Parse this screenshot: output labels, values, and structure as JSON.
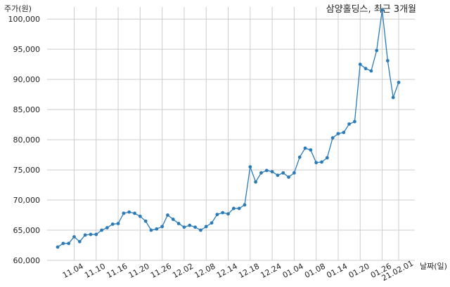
{
  "chart_data": {
    "type": "line",
    "title": "삼양홀딩스, 최근 3개월",
    "ylabel": "주가(원)",
    "xlabel": "날짜(일)",
    "ylim": [
      60000,
      102000
    ],
    "yticks": [
      "60,000",
      "65,000",
      "70,000",
      "75,000",
      "80,000",
      "85,000",
      "90,000",
      "95,000",
      "100,000"
    ],
    "xticks": [
      "11.04",
      "11.10",
      "11.16",
      "11.20",
      "11.26",
      "12.02",
      "12.08",
      "12.14",
      "12.18",
      "12.24",
      "01.04",
      "01.08",
      "01.14",
      "01.20",
      "01.26",
      "21.02.01"
    ],
    "grid": true,
    "line_color": "#2b7bb9",
    "values": [
      62200,
      62800,
      62800,
      63900,
      63100,
      64200,
      64300,
      64300,
      65000,
      65400,
      66000,
      66100,
      67800,
      68000,
      67800,
      67300,
      66500,
      65000,
      65200,
      65600,
      67500,
      66800,
      66100,
      65500,
      65800,
      65500,
      65000,
      65600,
      66200,
      67600,
      67900,
      67700,
      68600,
      68600,
      69200,
      75500,
      73000,
      74500,
      74900,
      74700,
      74100,
      74500,
      73800,
      74500,
      77100,
      78600,
      78300,
      76200,
      76300,
      77000,
      80300,
      81000,
      81200,
      82600,
      83000,
      92500,
      91800,
      91400,
      94800,
      101500,
      93100,
      87000,
      89500
    ]
  }
}
